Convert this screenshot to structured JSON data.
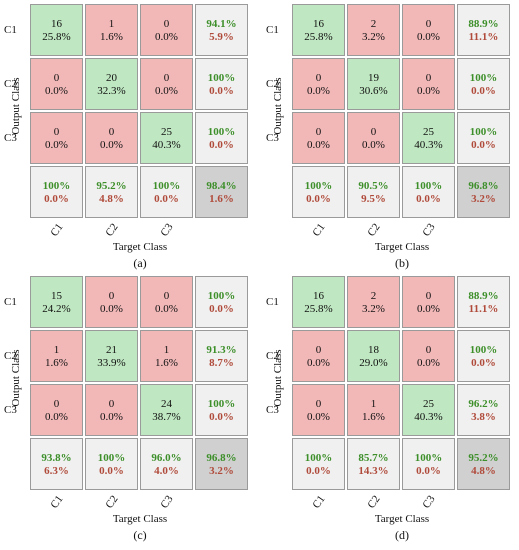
{
  "panels": [
    {
      "label": "(a)",
      "ylabel": "Output Class",
      "xlabel": "Target Class",
      "row_labels": [
        "C1",
        "C2",
        "C3"
      ],
      "col_labels": [
        "C1",
        "C2",
        "C3"
      ],
      "cells": [
        [
          {
            "count": "16",
            "pct": "25.8%"
          },
          {
            "count": "1",
            "pct": "1.6%"
          },
          {
            "count": "0",
            "pct": "0.0%"
          }
        ],
        [
          {
            "count": "0",
            "pct": "0.0%"
          },
          {
            "count": "20",
            "pct": "32.3%"
          },
          {
            "count": "0",
            "pct": "0.0%"
          }
        ],
        [
          {
            "count": "0",
            "pct": "0.0%"
          },
          {
            "count": "0",
            "pct": "0.0%"
          },
          {
            "count": "25",
            "pct": "40.3%"
          }
        ]
      ],
      "row_summary": [
        {
          "correct": "94.1%",
          "wrong": "5.9%"
        },
        {
          "correct": "100%",
          "wrong": "0.0%"
        },
        {
          "correct": "100%",
          "wrong": "0.0%"
        }
      ],
      "col_summary": [
        {
          "correct": "100%",
          "wrong": "0.0%"
        },
        {
          "correct": "95.2%",
          "wrong": "4.8%"
        },
        {
          "correct": "100%",
          "wrong": "0.0%"
        }
      ],
      "overall": {
        "correct": "98.4%",
        "wrong": "1.6%"
      }
    },
    {
      "label": "(b)",
      "ylabel": "Output Class",
      "xlabel": "Target Class",
      "row_labels": [
        "C1",
        "C2",
        "C3"
      ],
      "col_labels": [
        "C1",
        "C2",
        "C3"
      ],
      "cells": [
        [
          {
            "count": "16",
            "pct": "25.8%"
          },
          {
            "count": "2",
            "pct": "3.2%"
          },
          {
            "count": "0",
            "pct": "0.0%"
          }
        ],
        [
          {
            "count": "0",
            "pct": "0.0%"
          },
          {
            "count": "19",
            "pct": "30.6%"
          },
          {
            "count": "0",
            "pct": "0.0%"
          }
        ],
        [
          {
            "count": "0",
            "pct": "0.0%"
          },
          {
            "count": "0",
            "pct": "0.0%"
          },
          {
            "count": "25",
            "pct": "40.3%"
          }
        ]
      ],
      "row_summary": [
        {
          "correct": "88.9%",
          "wrong": "11.1%"
        },
        {
          "correct": "100%",
          "wrong": "0.0%"
        },
        {
          "correct": "100%",
          "wrong": "0.0%"
        }
      ],
      "col_summary": [
        {
          "correct": "100%",
          "wrong": "0.0%"
        },
        {
          "correct": "90.5%",
          "wrong": "9.5%"
        },
        {
          "correct": "100%",
          "wrong": "0.0%"
        }
      ],
      "overall": {
        "correct": "96.8%",
        "wrong": "3.2%"
      }
    },
    {
      "label": "(c)",
      "ylabel": "Output Class",
      "xlabel": "Target Class",
      "row_labels": [
        "C1",
        "C2",
        "C3"
      ],
      "col_labels": [
        "C1",
        "C2",
        "C3"
      ],
      "cells": [
        [
          {
            "count": "15",
            "pct": "24.2%"
          },
          {
            "count": "0",
            "pct": "0.0%"
          },
          {
            "count": "0",
            "pct": "0.0%"
          }
        ],
        [
          {
            "count": "1",
            "pct": "1.6%"
          },
          {
            "count": "21",
            "pct": "33.9%"
          },
          {
            "count": "1",
            "pct": "1.6%"
          }
        ],
        [
          {
            "count": "0",
            "pct": "0.0%"
          },
          {
            "count": "0",
            "pct": "0.0%"
          },
          {
            "count": "24",
            "pct": "38.7%"
          }
        ]
      ],
      "row_summary": [
        {
          "correct": "100%",
          "wrong": "0.0%"
        },
        {
          "correct": "91.3%",
          "wrong": "8.7%"
        },
        {
          "correct": "100%",
          "wrong": "0.0%"
        }
      ],
      "col_summary": [
        {
          "correct": "93.8%",
          "wrong": "6.3%"
        },
        {
          "correct": "100%",
          "wrong": "0.0%"
        },
        {
          "correct": "96.0%",
          "wrong": "4.0%"
        }
      ],
      "overall": {
        "correct": "96.8%",
        "wrong": "3.2%"
      }
    },
    {
      "label": "(d)",
      "ylabel": "Output Class",
      "xlabel": "Target Class",
      "row_labels": [
        "C1",
        "C2",
        "C3"
      ],
      "col_labels": [
        "C1",
        "C2",
        "C3"
      ],
      "cells": [
        [
          {
            "count": "16",
            "pct": "25.8%"
          },
          {
            "count": "2",
            "pct": "3.2%"
          },
          {
            "count": "0",
            "pct": "0.0%"
          }
        ],
        [
          {
            "count": "0",
            "pct": "0.0%"
          },
          {
            "count": "18",
            "pct": "29.0%"
          },
          {
            "count": "0",
            "pct": "0.0%"
          }
        ],
        [
          {
            "count": "0",
            "pct": "0.0%"
          },
          {
            "count": "1",
            "pct": "1.6%"
          },
          {
            "count": "25",
            "pct": "40.3%"
          }
        ]
      ],
      "row_summary": [
        {
          "correct": "88.9%",
          "wrong": "11.1%"
        },
        {
          "correct": "100%",
          "wrong": "0.0%"
        },
        {
          "correct": "96.2%",
          "wrong": "3.8%"
        }
      ],
      "col_summary": [
        {
          "correct": "100%",
          "wrong": "0.0%"
        },
        {
          "correct": "85.7%",
          "wrong": "14.3%"
        },
        {
          "correct": "100%",
          "wrong": "0.0%"
        }
      ],
      "overall": {
        "correct": "95.2%",
        "wrong": "4.8%"
      }
    }
  ],
  "colors": {
    "correct_cell": "#bfe7c1",
    "wrong_cell": "#f2b8b8",
    "summary_cell": "#f0f0f0",
    "overall_cell": "#d0d0d0",
    "correct_text": "#3d8f2a",
    "wrong_text": "#b04b3b"
  }
}
